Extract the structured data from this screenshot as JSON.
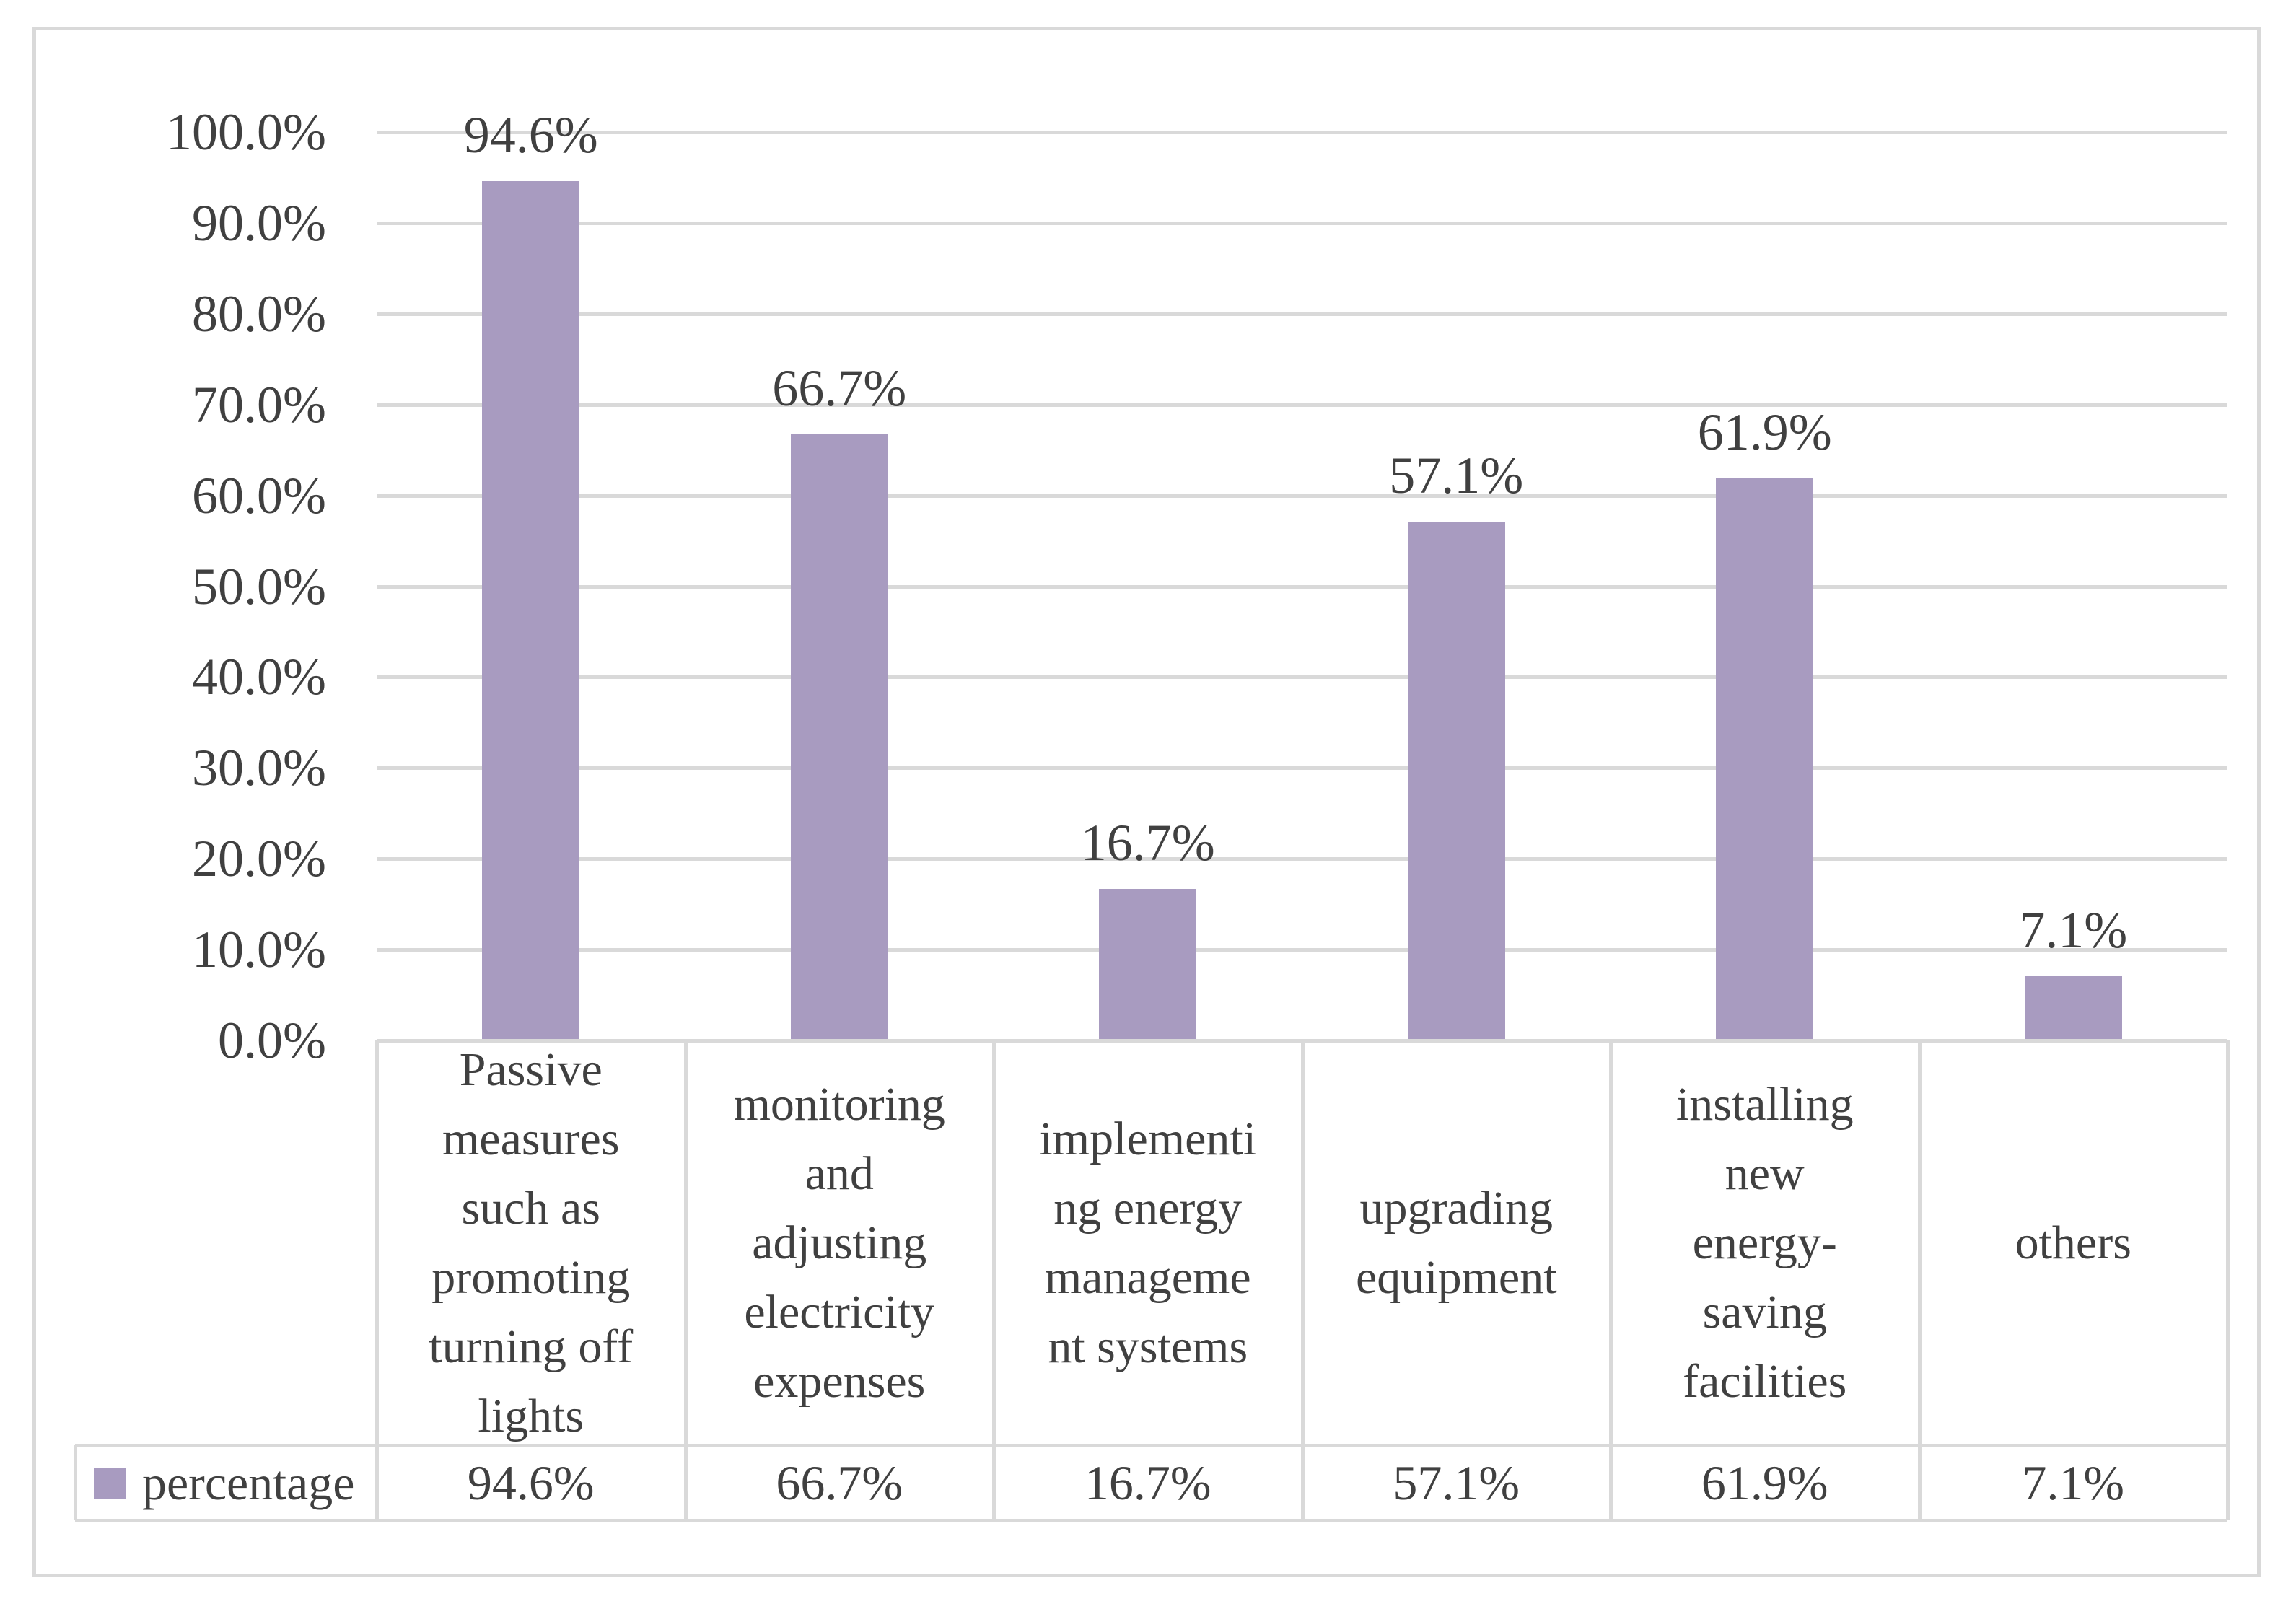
{
  "chart_data": {
    "type": "bar",
    "title": "",
    "series": [
      {
        "name": "percentage",
        "values": [
          94.6,
          66.7,
          16.7,
          57.1,
          61.9,
          7.1
        ]
      }
    ],
    "categories": [
      "Passive measures such as promoting turning off lights",
      "monitoring and adjusting electricity expenses",
      "implementing energy management systems",
      "upgrading equipment",
      "installing new energy-saving facilities",
      "others"
    ],
    "category_display_lines": [
      [
        "Passive",
        "measures",
        "such as",
        "promoting",
        "turning off",
        "lights"
      ],
      [
        "monitoring",
        "and",
        "adjusting",
        "electricity",
        "expenses"
      ],
      [
        "implementi",
        "ng energy",
        "manageme",
        "nt systems"
      ],
      [
        "upgrading",
        "equipment"
      ],
      [
        "installing",
        "new",
        "energy-",
        "saving",
        "facilities"
      ],
      [
        "others"
      ]
    ],
    "data_labels": [
      "94.6%",
      "66.7%",
      "16.7%",
      "57.1%",
      "61.9%",
      "7.1%"
    ],
    "y_axis": {
      "min": 0,
      "max": 100,
      "step": 10,
      "tick_labels_top_to_bottom": [
        "100.0%",
        "90.0%",
        "80.0%",
        "70.0%",
        "60.0%",
        "50.0%",
        "40.0%",
        "30.0%",
        "20.0%",
        "10.0%",
        "0.0%"
      ]
    },
    "grid": true,
    "legend_position": "bottom-data-table",
    "legend": {
      "label": "percentage"
    },
    "data_table_values": [
      "94.6%",
      "66.7%",
      "16.7%",
      "57.1%",
      "61.9%",
      "7.1%"
    ],
    "colors": {
      "bar": "#a89bc0",
      "grid": "#d9d9d9",
      "text": "#404040",
      "background": "#ffffff"
    }
  }
}
